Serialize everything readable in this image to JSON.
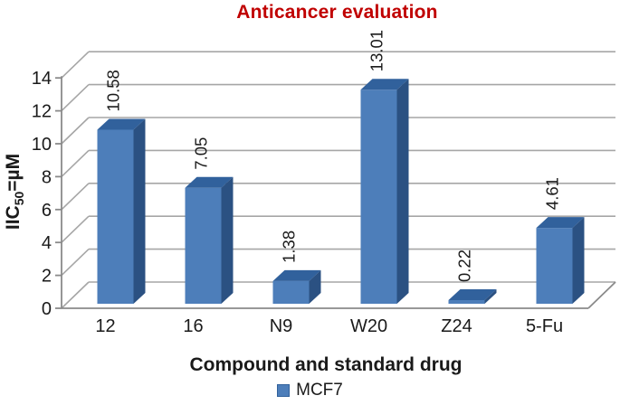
{
  "chart_data": {
    "type": "bar",
    "style": "3d-column",
    "title": "Anticancer evaluation",
    "title_color": "#c00000",
    "categories": [
      "12",
      "16",
      "N9",
      "W20",
      "Z24",
      "5-Fu"
    ],
    "series": [
      {
        "name": "MCF7",
        "values": [
          10.58,
          7.05,
          1.38,
          13.01,
          0.22,
          4.61
        ]
      }
    ],
    "value_labels": [
      "10.58",
      "7.05",
      "1.38",
      "13.01",
      "0.22",
      "4.61"
    ],
    "xlabel": "Compound and standard drug",
    "ylabel": {
      "prefix": "IIC",
      "sub": "50",
      "suffix": "=µM"
    },
    "ylim": [
      0,
      14
    ],
    "ytick_values": [
      0,
      2,
      4,
      6,
      8,
      10,
      12,
      14
    ],
    "ytick_labels": [
      "0",
      "2",
      "4",
      "6",
      "8",
      "10",
      "12",
      "14"
    ],
    "grid": true,
    "legend": {
      "label": "MCF7",
      "position": "bottom",
      "swatch_color": "#4d7eba",
      "swatch_border": "#31619c"
    },
    "colors": {
      "bar_front": "#4d7eba",
      "bar_top": "#31619c",
      "bar_side": "#2b5182",
      "gridline": "#a6a6a6",
      "axis": "#8a8a8a",
      "text": "#1a1a1a"
    }
  }
}
